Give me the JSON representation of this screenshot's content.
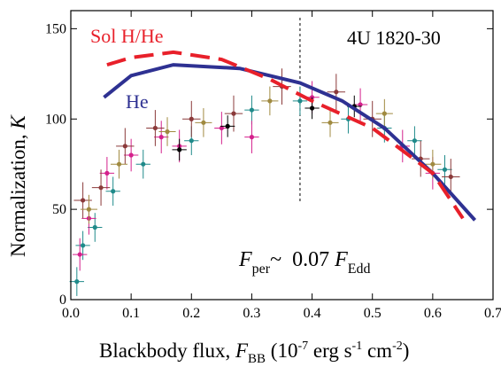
{
  "chart_data": {
    "type": "scatter",
    "title": "4U 1820-30",
    "x_label_parts": [
      "Blackbody flux, ",
      "F",
      "BB",
      " (10",
      "-7",
      " erg s",
      "-1",
      " cm",
      "-2",
      ")"
    ],
    "y_label_parts": [
      "Normalization, ",
      "K"
    ],
    "annotation_parts": [
      "F",
      "per",
      "~  0.07 ",
      "F",
      "Edd"
    ],
    "xlim": [
      0,
      0.7
    ],
    "ylim": [
      0,
      160
    ],
    "xticks": [
      {
        "value": 0,
        "label": "0.0"
      },
      0.1,
      0.2,
      0.3,
      0.4,
      0.5,
      0.6,
      0.7
    ],
    "yticks": [
      0,
      50,
      100,
      150
    ],
    "vline": 0.38,
    "series": [
      {
        "color": "#1f8a8a",
        "xerr": 0.012,
        "yerr": 8,
        "x": [
          0.01,
          0.02,
          0.04,
          0.07,
          0.12,
          0.2,
          0.3,
          0.38,
          0.46,
          0.52,
          0.57,
          0.62
        ],
        "values": [
          10,
          30,
          40,
          60,
          75,
          88,
          105,
          110,
          100,
          95,
          88,
          72
        ]
      },
      {
        "color": "#d4208c",
        "xerr": 0.012,
        "yerr": 9,
        "x": [
          0.015,
          0.03,
          0.06,
          0.1,
          0.15,
          0.18,
          0.25,
          0.3,
          0.4,
          0.48,
          0.55,
          0.6
        ],
        "values": [
          25,
          45,
          70,
          80,
          90,
          85,
          95,
          90,
          112,
          108,
          85,
          70
        ]
      },
      {
        "color": "#8b3a3a",
        "xerr": 0.015,
        "yerr": 10,
        "x": [
          0.02,
          0.05,
          0.09,
          0.14,
          0.2,
          0.27,
          0.35,
          0.44,
          0.5,
          0.58,
          0.63
        ],
        "values": [
          55,
          62,
          85,
          95,
          100,
          103,
          118,
          115,
          100,
          78,
          68
        ]
      },
      {
        "color": "#a08a40",
        "xerr": 0.014,
        "yerr": 8,
        "x": [
          0.03,
          0.08,
          0.16,
          0.22,
          0.33,
          0.43,
          0.52,
          0.6
        ],
        "values": [
          50,
          75,
          93,
          98,
          110,
          98,
          103,
          75
        ]
      },
      {
        "color": "#000000",
        "xerr": 0.012,
        "yerr": 6,
        "x": [
          0.18,
          0.26,
          0.4,
          0.47
        ],
        "values": [
          83,
          96,
          106,
          107
        ]
      }
    ],
    "lines": [
      {
        "name": "He",
        "color": "#2e3192",
        "dashed": false,
        "x": [
          0.055,
          0.1,
          0.17,
          0.28,
          0.38,
          0.45,
          0.52,
          0.6,
          0.67
        ],
        "values": [
          112,
          124,
          130,
          128,
          120,
          110,
          95,
          70,
          44
        ]
      },
      {
        "name": "Sol H/He",
        "color": "#e8202a",
        "dashed": true,
        "x": [
          0.06,
          0.1,
          0.17,
          0.25,
          0.33,
          0.4,
          0.5,
          0.6,
          0.65
        ],
        "values": [
          130,
          134,
          137,
          133,
          122,
          110,
          95,
          70,
          45
        ]
      }
    ]
  }
}
